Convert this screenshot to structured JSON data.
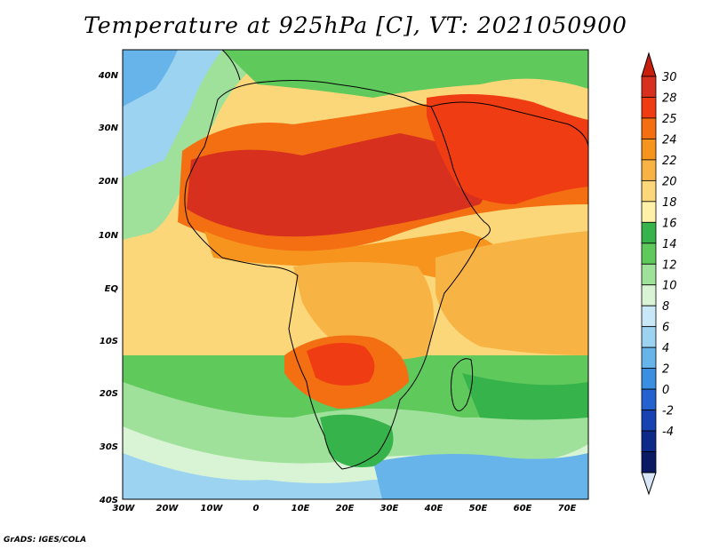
{
  "title": "Temperature at 925hPa [C], VT: 2021050900",
  "footer": "GrADS: IGES/COLA",
  "map": {
    "lat_labels": [
      "40N",
      "30N",
      "20N",
      "10N",
      "EQ",
      "10S",
      "20S",
      "30S",
      "40S"
    ],
    "lon_labels": [
      "30W",
      "20W",
      "10W",
      "0",
      "10E",
      "20E",
      "30E",
      "40E",
      "50E",
      "60E",
      "70E"
    ]
  },
  "colorbar": {
    "levels": [
      "30",
      "28",
      "25",
      "24",
      "22",
      "20",
      "18",
      "16",
      "14",
      "12",
      "10",
      "8",
      "6",
      "4",
      "2",
      "0",
      "-2",
      "-4"
    ],
    "colors": [
      "#d7301f",
      "#f03c13",
      "#f46e12",
      "#f7941d",
      "#f8b345",
      "#fcd77a",
      "#fff1a8",
      "#36b34a",
      "#5fc95c",
      "#9fe19a",
      "#d8f4d4",
      "#c9e8f7",
      "#9cd3f0",
      "#66b4ea",
      "#3a8fe0",
      "#2463cf",
      "#1642b2",
      "#0d2a8a",
      "#0a1a63"
    ],
    "top_color": "#c81e0e",
    "bottom_color": "#d9e6f7"
  },
  "legend_colors": {
    "ocean": "#fce08e",
    "coast": "#000000"
  }
}
